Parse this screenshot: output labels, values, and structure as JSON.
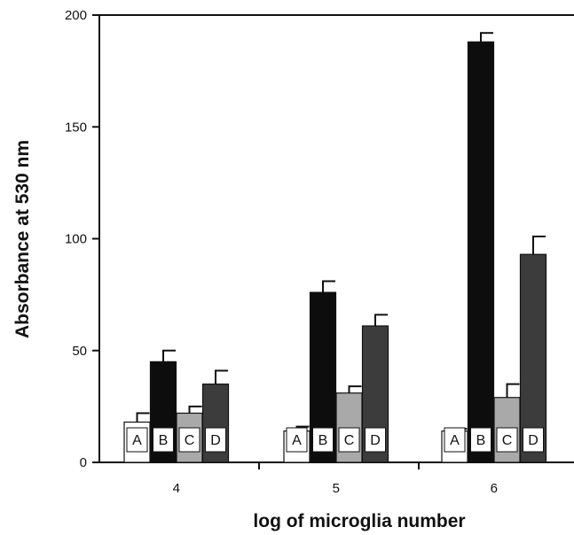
{
  "chart_data": {
    "type": "bar",
    "title": "",
    "xlabel": "log of microglia number",
    "ylabel": "Absorbance at 530 nm",
    "ylim": [
      0,
      200
    ],
    "yticks": [
      0,
      50,
      100,
      150,
      200
    ],
    "categories": [
      "4",
      "5",
      "6"
    ],
    "series": [
      {
        "name": "A",
        "values": [
          18,
          14,
          14
        ],
        "errors": [
          4,
          2,
          1
        ],
        "color": "#ffffff"
      },
      {
        "name": "B",
        "values": [
          45,
          76,
          188
        ],
        "errors": [
          5,
          5,
          4
        ],
        "color": "#0d0d0d"
      },
      {
        "name": "C",
        "values": [
          22,
          31,
          29
        ],
        "errors": [
          3,
          3,
          6
        ],
        "color": "#a9a9a9"
      },
      {
        "name": "D",
        "values": [
          35,
          61,
          93
        ],
        "errors": [
          6,
          5,
          8
        ],
        "color": "#3c3c3c"
      }
    ],
    "grid": false,
    "legend": "none"
  }
}
